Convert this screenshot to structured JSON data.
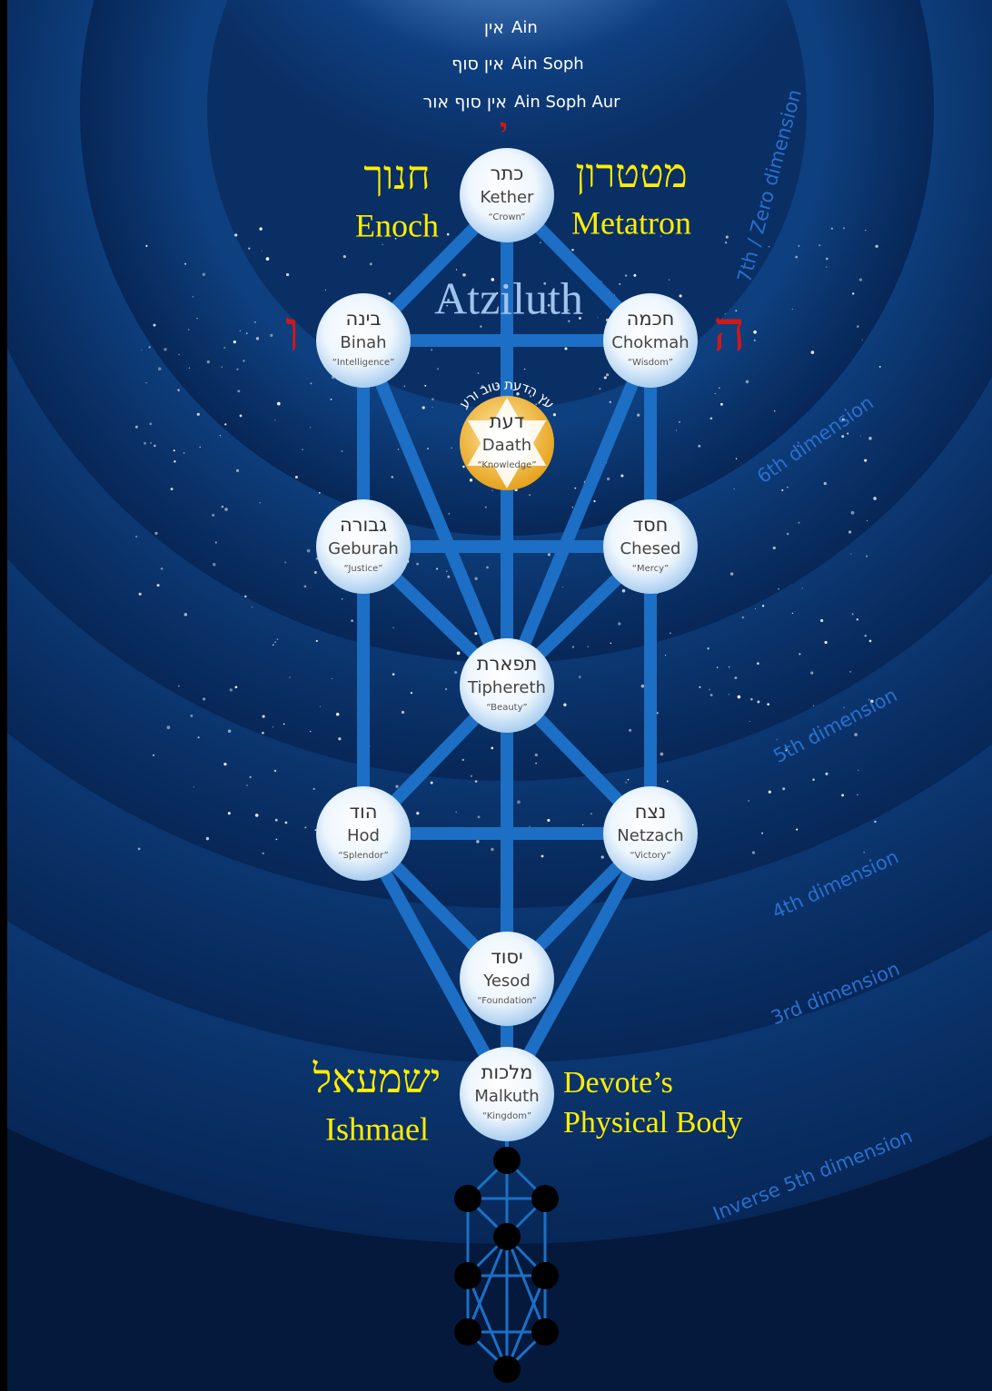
{
  "header": {
    "lines": [
      {
        "hebrew": "אין",
        "english": "Ain"
      },
      {
        "hebrew": "אין סוף",
        "english": "Ain Soph"
      },
      {
        "hebrew": "אין סוף אור",
        "english": "Ain Soph Aur"
      }
    ]
  },
  "letters": {
    "yod": "י",
    "vav": "ו",
    "he": "ה"
  },
  "figures": {
    "enoch": {
      "hebrew": "חנוך",
      "english": "Enoch"
    },
    "metatron": {
      "hebrew": "מטטרון",
      "english": "Metatron"
    },
    "ishmael": {
      "hebrew": "ישמעאל",
      "english": "Ishmael"
    },
    "devotee": {
      "line1": "Devote’s",
      "line2": "Physical Body"
    }
  },
  "world": "Atziluth",
  "tree_of_knowledge": "עץ הדעת טוב ורע",
  "sephiroth": [
    {
      "hebrew": "כתר",
      "name": "Kether",
      "meaning": "“Crown”"
    },
    {
      "hebrew": "בינה",
      "name": "Binah",
      "meaning": "“Intelligence”"
    },
    {
      "hebrew": "חכמה",
      "name": "Chokmah",
      "meaning": "“Wisdom”"
    },
    {
      "hebrew": "דעת",
      "name": "Daath",
      "meaning": "“Knowledge”"
    },
    {
      "hebrew": "גבורה",
      "name": "Geburah",
      "meaning": "“Justice”"
    },
    {
      "hebrew": "חסד",
      "name": "Chesed",
      "meaning": "“Mercy”"
    },
    {
      "hebrew": "תפארת",
      "name": "Tiphereth",
      "meaning": "“Beauty”"
    },
    {
      "hebrew": "הוד",
      "name": "Hod",
      "meaning": "“Splendor”"
    },
    {
      "hebrew": "נצח",
      "name": "Netzach",
      "meaning": "“Victory”"
    },
    {
      "hebrew": "יסוד",
      "name": "Yesod",
      "meaning": "“Foundation”"
    },
    {
      "hebrew": "מלכות",
      "name": "Malkuth",
      "meaning": "“Kingdom”"
    }
  ],
  "dimensions": [
    "7th / Zero dimension",
    "6th dimension",
    "5th dimension",
    "4th dimension",
    "3rd dimension",
    "Inverse 5th dimension"
  ]
}
